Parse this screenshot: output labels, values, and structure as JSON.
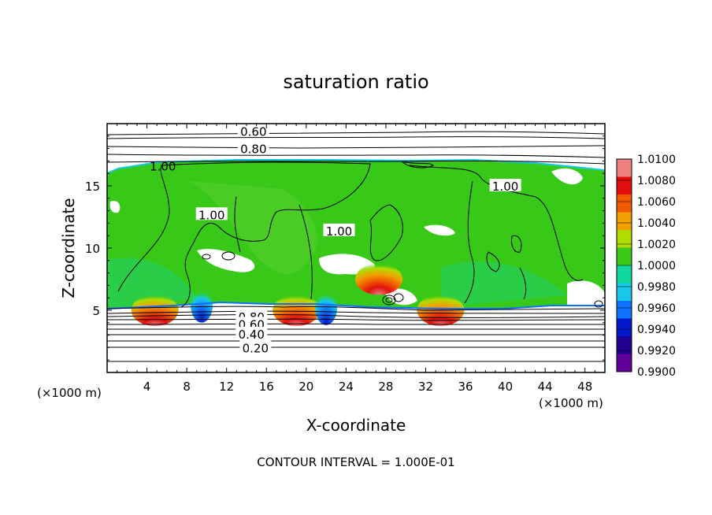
{
  "chart_data": {
    "type": "heatmap",
    "title": "saturation ratio",
    "xlabel": "X-coordinate",
    "ylabel": "Z-coordinate",
    "x_unit_left": "(×1000 m)",
    "x_unit_right": "(×1000 m)",
    "footer": "CONTOUR INTERVAL = 1.000E-01",
    "xlim": [
      0,
      50
    ],
    "ylim": [
      0,
      20
    ],
    "x_ticks": [
      "4",
      "8",
      "12",
      "16",
      "20",
      "24",
      "28",
      "32",
      "36",
      "40",
      "44",
      "48"
    ],
    "y_ticks": [
      "5",
      "10",
      "15"
    ],
    "colorbar": {
      "labels": [
        "1.0100",
        "1.0080",
        "1.0060",
        "1.0040",
        "1.0020",
        "1.0000",
        "0.9980",
        "0.9960",
        "0.9940",
        "0.9920",
        "0.9900"
      ],
      "colors": [
        "#f08080",
        "#e01010",
        "#f05a00",
        "#f0a000",
        "#b0dc00",
        "#38c818",
        "#10d8a0",
        "#18c8e8",
        "#1070ff",
        "#0018c8",
        "#200090",
        "#600098"
      ]
    },
    "contour_labels": [
      {
        "text": "0.60",
        "x": 14.7,
        "z": 19.4
      },
      {
        "text": "0.80",
        "x": 14.7,
        "z": 18.0
      },
      {
        "text": "1.00",
        "x": 5.6,
        "z": 16.6
      },
      {
        "text": "1.00",
        "x": 40.0,
        "z": 15.0
      },
      {
        "text": "1.00",
        "x": 10.5,
        "z": 12.7
      },
      {
        "text": "1.00",
        "x": 23.3,
        "z": 11.4
      },
      {
        "text": "0.80",
        "x": 14.5,
        "z": 4.5
      },
      {
        "text": "0.60",
        "x": 14.5,
        "z": 3.9
      },
      {
        "text": "0.40",
        "x": 14.5,
        "z": 3.1
      },
      {
        "text": "0.20",
        "x": 14.9,
        "z": 2.0
      }
    ],
    "hot_spots": [
      {
        "x": 4.8,
        "z": 5.0,
        "value": 1.01
      },
      {
        "x": 19.0,
        "z": 5.0,
        "value": 1.008
      },
      {
        "x": 33.5,
        "z": 5.0,
        "value": 1.01
      },
      {
        "x": 27.3,
        "z": 7.5,
        "value": 1.004
      }
    ],
    "cold_spots": [
      {
        "x": 9.5,
        "z": 5.4,
        "value": 0.992
      },
      {
        "x": 22.0,
        "z": 5.2,
        "value": 0.994
      }
    ]
  }
}
